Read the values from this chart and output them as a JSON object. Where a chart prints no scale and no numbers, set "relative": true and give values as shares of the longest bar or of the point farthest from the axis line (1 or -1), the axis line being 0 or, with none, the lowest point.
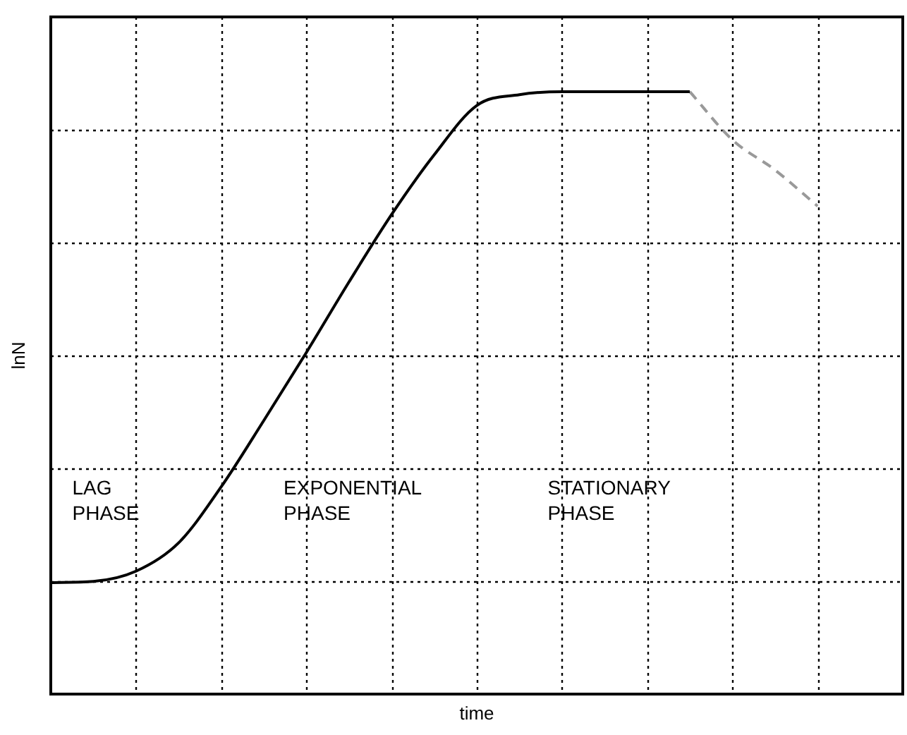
{
  "chart_data": {
    "type": "line",
    "relative": true,
    "xlabel": "time",
    "ylabel": "lnN",
    "grid": true,
    "legend": false,
    "marker": "none",
    "categories": [
      null,
      null,
      null,
      null,
      null,
      null,
      null,
      null,
      null,
      null,
      null,
      null,
      null,
      null,
      null,
      null,
      null,
      null,
      null,
      null,
      null
    ],
    "series": [
      {
        "color": "#000000",
        "line_style": "solid",
        "values": [
          0.185,
          0.187,
          0.204,
          0.251,
          0.344,
          0.454,
          0.567,
          0.684,
          0.796,
          0.895,
          0.977,
          0.995,
          1,
          1,
          1,
          1,
          null,
          null,
          null,
          null,
          null
        ]
      },
      {
        "color": "#999999",
        "line_style": "dashed",
        "values": [
          null,
          null,
          null,
          null,
          null,
          null,
          null,
          null,
          null,
          null,
          null,
          null,
          null,
          null,
          null,
          1,
          0.92,
          0.87,
          0.81,
          null,
          null
        ]
      }
    ],
    "annotations": [
      "LAG PHASE",
      "EXPONENTIAL PHASE",
      "STATIONARY PHASE"
    ]
  }
}
